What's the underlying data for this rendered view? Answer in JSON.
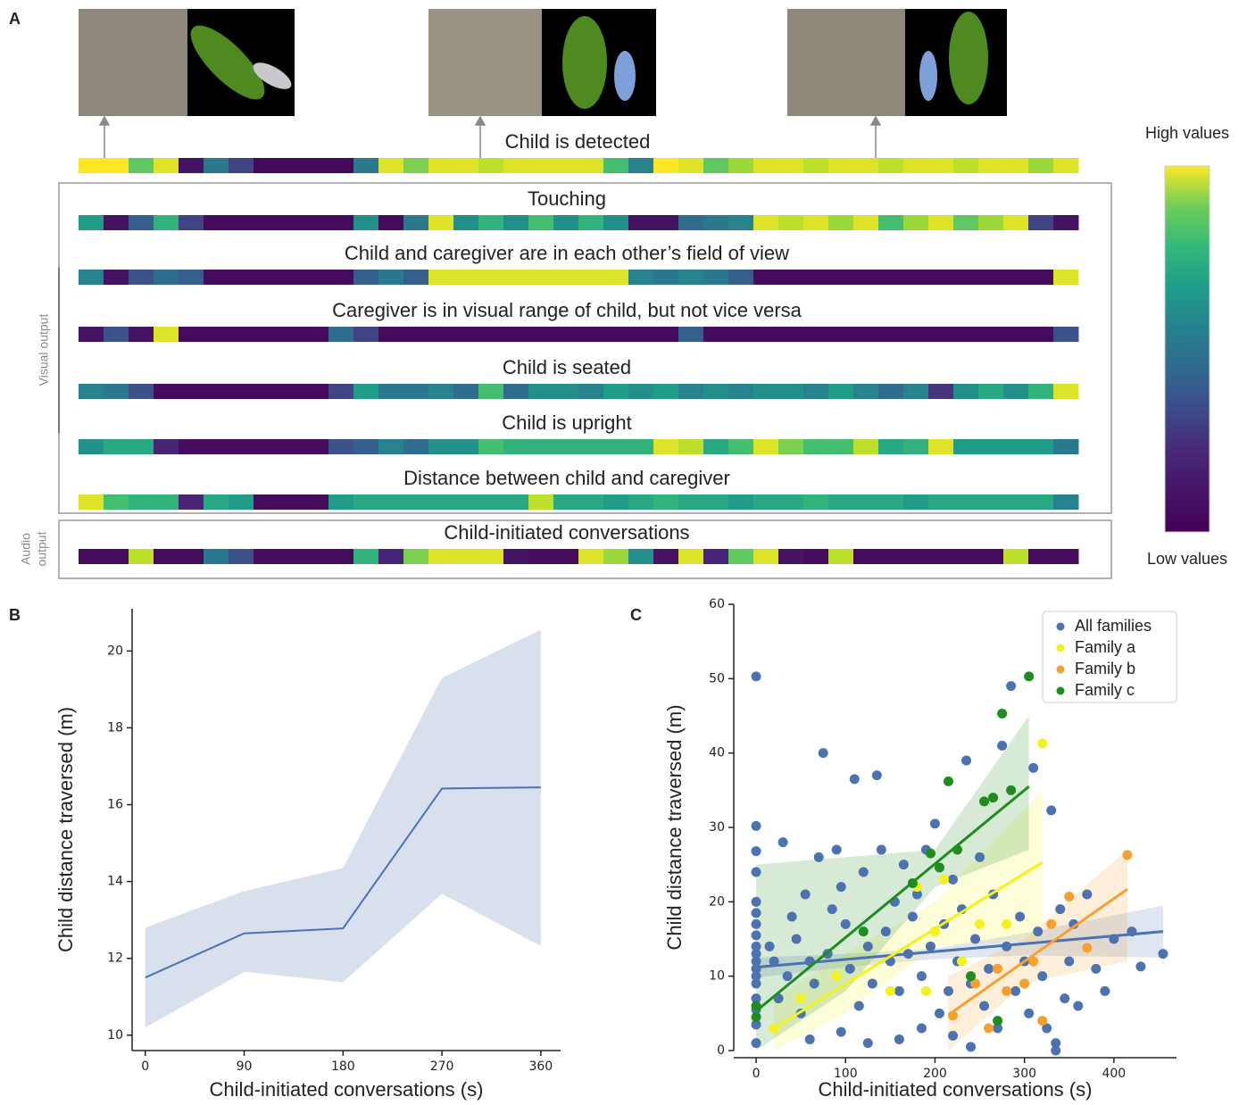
{
  "chart_data": [
    {
      "type": "heatmap",
      "panel": "A",
      "clim": [
        0,
        1
      ],
      "rows": [
        {
          "label": "Child is detected",
          "values": [
            1,
            1,
            0.75,
            0.95,
            0.05,
            0.4,
            0.2,
            0.02,
            0.02,
            0.02,
            0.02,
            0.4,
            0.95,
            0.8,
            0.95,
            0.95,
            0.9,
            0.95,
            0.95,
            0.95,
            0.95,
            0.7,
            0.45,
            1,
            0.95,
            0.75,
            0.85,
            0.95,
            0.95,
            0.9,
            0.95,
            0.95,
            0.9,
            0.95,
            0.95,
            0.9,
            0.95,
            0.95,
            0.85,
            0.95
          ]
        },
        {
          "label": "Touching",
          "values": [
            0.55,
            0.05,
            0.3,
            0.65,
            0.2,
            0.03,
            0.03,
            0.03,
            0.03,
            0.03,
            0.03,
            0.5,
            0.03,
            0.4,
            0.95,
            0.5,
            0.65,
            0.5,
            0.7,
            0.5,
            0.65,
            0.5,
            0.05,
            0.05,
            0.35,
            0.4,
            0.45,
            0.95,
            0.9,
            0.95,
            0.85,
            0.95,
            0.7,
            0.85,
            0.95,
            0.75,
            0.85,
            0.95,
            0.2,
            0.05
          ]
        },
        {
          "label": "Child and caregiver are in each other’s field of view",
          "values": [
            0.45,
            0.05,
            0.25,
            0.35,
            0.3,
            0.03,
            0.03,
            0.03,
            0.03,
            0.03,
            0.03,
            0.3,
            0.4,
            0.3,
            0.95,
            0.95,
            0.95,
            0.95,
            0.95,
            0.95,
            0.95,
            0.95,
            0.45,
            0.4,
            0.45,
            0.4,
            0.3,
            0.03,
            0.03,
            0.03,
            0.03,
            0.03,
            0.03,
            0.03,
            0.03,
            0.03,
            0.03,
            0.03,
            0.03,
            0.95
          ]
        },
        {
          "label": "Caregiver is in visual range of child, but not vice versa",
          "values": [
            0.05,
            0.25,
            0.05,
            0.95,
            0.03,
            0.03,
            0.03,
            0.03,
            0.03,
            0.03,
            0.35,
            0.2,
            0.03,
            0.03,
            0.03,
            0.03,
            0.03,
            0.03,
            0.03,
            0.03,
            0.03,
            0.03,
            0.03,
            0.03,
            0.3,
            0.03,
            0.03,
            0.03,
            0.03,
            0.03,
            0.03,
            0.03,
            0.03,
            0.03,
            0.03,
            0.03,
            0.03,
            0.03,
            0.03,
            0.25
          ]
        },
        {
          "label": "Child is seated",
          "values": [
            0.45,
            0.4,
            0.25,
            0.03,
            0.03,
            0.03,
            0.03,
            0.03,
            0.03,
            0.03,
            0.2,
            0.55,
            0.4,
            0.4,
            0.45,
            0.35,
            0.7,
            0.35,
            0.5,
            0.5,
            0.45,
            0.55,
            0.5,
            0.55,
            0.45,
            0.5,
            0.45,
            0.5,
            0.5,
            0.45,
            0.55,
            0.45,
            0.35,
            0.45,
            0.15,
            0.5,
            0.6,
            0.5,
            0.65,
            0.95
          ]
        },
        {
          "label": "Child is upright",
          "values": [
            0.5,
            0.6,
            0.6,
            0.1,
            0.03,
            0.03,
            0.03,
            0.03,
            0.03,
            0.03,
            0.25,
            0.3,
            0.45,
            0.35,
            0.5,
            0.5,
            0.7,
            0.65,
            0.65,
            0.65,
            0.65,
            0.65,
            0.65,
            0.95,
            0.9,
            0.6,
            0.7,
            0.95,
            0.8,
            0.7,
            0.7,
            0.9,
            0.6,
            0.65,
            0.95,
            0.55,
            0.55,
            0.55,
            0.55,
            0.4
          ]
        },
        {
          "label": "Distance between child and caregiver",
          "values": [
            0.95,
            0.7,
            0.65,
            0.65,
            0.1,
            0.6,
            0.55,
            0.03,
            0.03,
            0.03,
            0.55,
            0.6,
            0.6,
            0.6,
            0.6,
            0.6,
            0.6,
            0.6,
            0.9,
            0.6,
            0.6,
            0.55,
            0.6,
            0.65,
            0.6,
            0.6,
            0.55,
            0.6,
            0.6,
            0.65,
            0.6,
            0.6,
            0.6,
            0.55,
            0.6,
            0.6,
            0.6,
            0.6,
            0.6,
            0.45
          ]
        },
        {
          "label": "Child-initiated conversations",
          "values": [
            0.03,
            0.03,
            0.9,
            0.03,
            0.03,
            0.4,
            0.25,
            0.03,
            0.03,
            0.03,
            0.03,
            0.65,
            0.1,
            0.8,
            0.95,
            0.95,
            0.95,
            0.05,
            0.03,
            0.03,
            0.95,
            0.85,
            0.5,
            0.05,
            0.95,
            0.1,
            0.75,
            0.95,
            0.05,
            0.03,
            0.9,
            0.03,
            0.03,
            0.03,
            0.03,
            0.03,
            0.03,
            0.9,
            0.03,
            0.03
          ]
        }
      ],
      "group_labels": {
        "visual": "Visual output",
        "audio": [
          "Audio",
          "output"
        ]
      },
      "colorbar": {
        "high": "High values",
        "low": "Low values"
      }
    },
    {
      "type": "line",
      "panel": "B",
      "xlabel": "Child-initiated conversations (s)",
      "ylabel": "Child distance traversed (m)",
      "x": [
        0,
        90,
        180,
        270,
        360
      ],
      "series": [
        {
          "color": "#4c72b0",
          "values": [
            11.5,
            12.65,
            12.78,
            16.42,
            16.45
          ],
          "lower": [
            10.2,
            11.65,
            11.38,
            13.68,
            12.32
          ],
          "upper": [
            12.8,
            13.75,
            14.35,
            19.3,
            20.55
          ]
        }
      ],
      "xlim": [
        -12,
        378
      ],
      "ylim": [
        9.6,
        21.1
      ],
      "xticks": [
        0,
        90,
        180,
        270,
        360
      ],
      "yticks": [
        10,
        12,
        14,
        16,
        18,
        20
      ]
    },
    {
      "type": "scatter",
      "panel": "C",
      "xlabel": "Child-initiated conversations (s)",
      "ylabel": "Child distance traversed (m)",
      "legend": "upper right",
      "xlim": [
        -25,
        470
      ],
      "ylim": [
        0,
        60
      ],
      "xticks": [
        0,
        100,
        200,
        300,
        400
      ],
      "yticks": [
        0,
        10,
        20,
        30,
        40,
        50,
        60
      ],
      "series": [
        {
          "name": "All families",
          "color": "#4c72b0",
          "x": [
            0,
            0,
            0,
            0,
            0,
            0,
            0,
            0,
            0,
            0,
            0,
            0,
            0,
            0,
            0,
            0,
            0,
            0,
            15,
            20,
            25,
            30,
            35,
            40,
            45,
            50,
            55,
            60,
            65,
            70,
            75,
            80,
            85,
            90,
            95,
            100,
            105,
            110,
            115,
            120,
            125,
            130,
            135,
            140,
            145,
            150,
            155,
            160,
            165,
            170,
            175,
            180,
            185,
            190,
            195,
            200,
            205,
            210,
            215,
            220,
            225,
            230,
            235,
            240,
            245,
            250,
            255,
            260,
            265,
            270,
            275,
            280,
            285,
            290,
            295,
            300,
            305,
            310,
            315,
            320,
            325,
            330,
            335,
            340,
            345,
            350,
            355,
            360,
            370,
            380,
            390,
            400,
            420,
            430,
            455,
            125,
            60,
            240,
            185,
            95,
            160,
            220,
            335
          ],
          "values": [
            50.3,
            30.2,
            26.8,
            24,
            20,
            18.5,
            17,
            15.5,
            14,
            13,
            12,
            11,
            10,
            9,
            7,
            5.5,
            3.5,
            1,
            14,
            12,
            7,
            28,
            10,
            18,
            15,
            5,
            21,
            12,
            9,
            26,
            40,
            13,
            19,
            27,
            22,
            17,
            11,
            36.5,
            6,
            24,
            14,
            9,
            37,
            27,
            16,
            12,
            20,
            8,
            25,
            13,
            18,
            21,
            10,
            27,
            14,
            30.5,
            5,
            17,
            8,
            23,
            12,
            19,
            39,
            9,
            15,
            26,
            6,
            11,
            21,
            3,
            41,
            14,
            49,
            8,
            18,
            12,
            5,
            38,
            16,
            10,
            3,
            32.3,
            1,
            19,
            7,
            12,
            17,
            6,
            21,
            11,
            8,
            15,
            16,
            11.3,
            13,
            1,
            1.5,
            0.5,
            3,
            2.5,
            1.5,
            2,
            0
          ],
          "fit": {
            "x": [
              0,
              455
            ],
            "y": [
              11.2,
              16
            ]
          },
          "band": {
            "x": [
              0,
              100,
              200,
              300,
              455
            ],
            "lower": [
              9.8,
              11.2,
              12.3,
              12.8,
              12.5
            ],
            "upper": [
              12.5,
              13,
              13.7,
              15.8,
              19.5
            ]
          }
        },
        {
          "name": "Family a",
          "color": "#f2f21f",
          "x": [
            20,
            50,
            90,
            150,
            180,
            190,
            200,
            210,
            250,
            280,
            300,
            320,
            230
          ],
          "values": [
            3,
            7,
            10,
            8,
            22,
            8,
            16,
            23,
            17,
            17,
            9,
            41.3,
            12
          ],
          "fit": {
            "x": [
              20,
              320
            ],
            "y": [
              3,
              25.3
            ]
          },
          "band": {
            "x": [
              20,
              100,
              200,
              320
            ],
            "lower": [
              0,
              5,
              14,
              15
            ],
            "upper": [
              7,
              13,
              20,
              35
            ]
          }
        },
        {
          "name": "Family b",
          "color": "#f5a030",
          "x": [
            220,
            245,
            260,
            270,
            300,
            310,
            320,
            330,
            350,
            370,
            415,
            280
          ],
          "values": [
            4.7,
            9,
            3,
            11,
            9,
            12,
            4,
            17,
            20.7,
            13.8,
            26.3,
            8
          ],
          "fit": {
            "x": [
              215,
              415
            ],
            "y": [
              4.8,
              21.7
            ]
          },
          "band": {
            "x": [
              215,
              300,
              415
            ],
            "lower": [
              0,
              9,
              12
            ],
            "upper": [
              10,
              15,
              27
            ]
          }
        },
        {
          "name": "Family c",
          "color": "#1e8c1e",
          "x": [
            0,
            0,
            120,
            175,
            195,
            205,
            215,
            225,
            240,
            255,
            270,
            275,
            285,
            305,
            265
          ],
          "values": [
            6,
            4.5,
            16,
            22.5,
            26.5,
            24.6,
            36.2,
            27,
            10,
            33.5,
            4,
            45.3,
            35,
            50.3,
            34
          ],
          "fit": {
            "x": [
              0,
              305
            ],
            "y": [
              5.3,
              35.5
            ]
          },
          "band": {
            "x": [
              0,
              100,
              200,
              305
            ],
            "lower": [
              0,
              8,
              22,
              27
            ],
            "upper": [
              25,
              26,
              27,
              45
            ]
          }
        }
      ]
    }
  ]
}
